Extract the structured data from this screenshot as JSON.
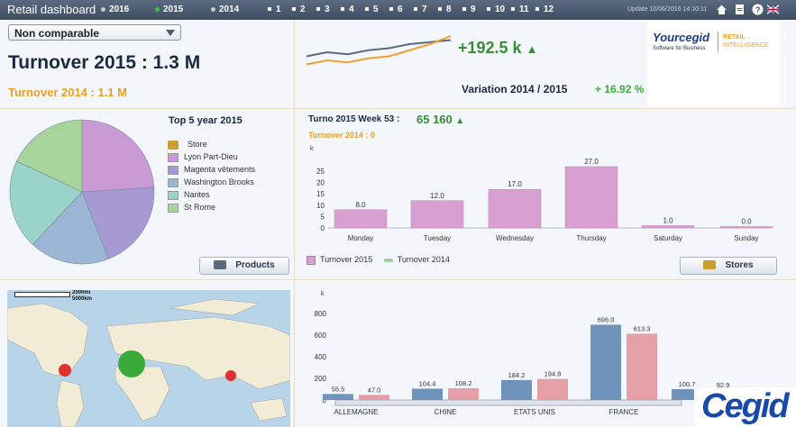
{
  "topbar": {
    "title": "Retail dashboard",
    "years": [
      {
        "label": "2016",
        "color": "#c9c9c9"
      },
      {
        "label": "2015",
        "color": "#3ec23e"
      },
      {
        "label": "2014",
        "color": "#c9c9c9"
      }
    ],
    "months": [
      "1",
      "2",
      "3",
      "4",
      "5",
      "6",
      "7",
      "8",
      "9",
      "10",
      "11",
      "12"
    ],
    "update": "Update 10/06/2016 14:10:11"
  },
  "filter": {
    "value": "Non comparable"
  },
  "kpi": {
    "turnover_2015": "Turnover 2015 : 1.3 M",
    "turnover_2014": "Turnover 2014 : 1.1 M",
    "delta": "+192.5 k",
    "variation_label": "Variation 2014 / 2015",
    "variation_value": "+ 16.92 %",
    "colors": {
      "accent": "#3a8a3a",
      "orange": "#e8a020",
      "navy": "#1a2a40"
    }
  },
  "logo": {
    "brand": "Yourcegid",
    "tagline": "Software for Business",
    "suffix1": "RETAIL",
    "suffix2": "INTELLIGENCE"
  },
  "top5": {
    "title": "Top 5 year 2015",
    "store_header": "Store",
    "stores": [
      {
        "name": "Lyon Part-Dieu",
        "color": "#c99ad4"
      },
      {
        "name": "Magenta vêtements",
        "color": "#a79ad4"
      },
      {
        "name": "Washington Brooks",
        "color": "#9ab6d4"
      },
      {
        "name": "Nantes",
        "color": "#9ad4c8"
      },
      {
        "name": "St Rome",
        "color": "#a7d49a"
      }
    ],
    "button": "Products"
  },
  "weekly": {
    "title": "Turno 2015 Week 53 :",
    "value": "65 160",
    "sub": "Turnover 2014 : 0",
    "unit": "k",
    "legend": [
      "Turnover 2015",
      "Turnover 2014"
    ],
    "button": "Stores"
  },
  "map": {
    "scale1": "2000mi",
    "scale2": "5000km"
  },
  "country": {
    "unit": "k"
  },
  "chart_data": [
    {
      "type": "line",
      "series": [
        {
          "values": [
            3,
            4,
            3.5,
            4.5,
            5,
            6,
            6.5,
            7
          ]
        },
        {
          "values": [
            1,
            2,
            1.5,
            2.5,
            3,
            4.5,
            6,
            8
          ]
        }
      ]
    },
    {
      "type": "pie",
      "categories": [
        "Lyon Part-Dieu",
        "Magenta vêtements",
        "Washington Brooks",
        "Nantes",
        "St Rome"
      ],
      "values": [
        24,
        20,
        18,
        20,
        18
      ]
    },
    {
      "type": "bar",
      "categories": [
        "Monday",
        "Tuesday",
        "Wednesday",
        "Thursday",
        "Saturday",
        "Sunday"
      ],
      "values": [
        8.0,
        12.0,
        17.0,
        27.0,
        1.0,
        0.0
      ],
      "value_labels": [
        "8.0",
        "12.0",
        "17.0",
        "27.0",
        "1.0",
        "0.0"
      ],
      "yticks": [
        "0",
        "5",
        "10",
        "15",
        "20",
        "25"
      ],
      "ylim": [
        0,
        30
      ]
    },
    {
      "type": "bar",
      "categories": [
        "ALLEMAGNE",
        "CHINE",
        "ETATS UNIS",
        "FRANCE",
        ""
      ],
      "series": [
        {
          "values": [
            55.5,
            104.4,
            184.2,
            696.0,
            100.7
          ],
          "labels": [
            "55.5",
            "104.4",
            "184.2",
            "696.0",
            "100.7"
          ],
          "color": "#6f93ba"
        },
        {
          "values": [
            47.0,
            108.2,
            194.8,
            613.3,
            92.9
          ],
          "labels": [
            "47.0",
            "108.2",
            "194.8",
            "613.3",
            "92.9"
          ],
          "color": "#e4a0a6"
        }
      ],
      "yticks": [
        "0",
        "200",
        "400",
        "600",
        "800"
      ],
      "ylim": [
        0,
        800
      ]
    }
  ]
}
